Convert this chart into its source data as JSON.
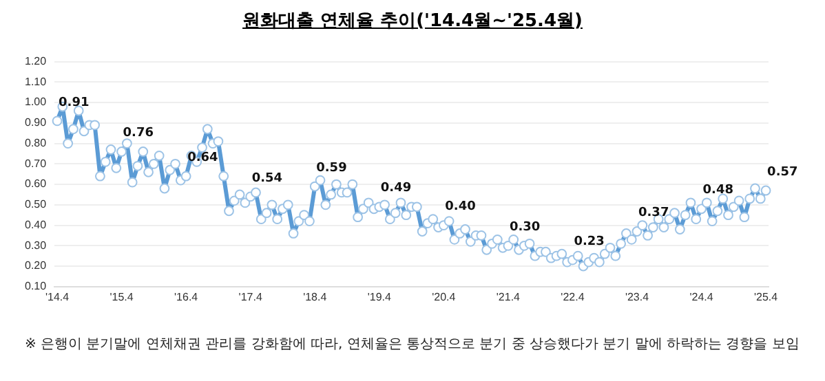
{
  "chart_data": {
    "type": "line",
    "title": "원화대출 연체율 추이('14.4월~'25.4월)",
    "categories": [
      "'14.4",
      null,
      null,
      null,
      null,
      null,
      null,
      null,
      null,
      null,
      null,
      null,
      "'15.4",
      null,
      null,
      null,
      null,
      null,
      null,
      null,
      null,
      null,
      null,
      null,
      "'16.4",
      null,
      null,
      null,
      null,
      null,
      null,
      null,
      null,
      null,
      null,
      null,
      "'17.4",
      null,
      null,
      null,
      null,
      null,
      null,
      null,
      null,
      null,
      null,
      null,
      "'18.4",
      null,
      null,
      null,
      null,
      null,
      null,
      null,
      null,
      null,
      null,
      null,
      "'19.4",
      null,
      null,
      null,
      null,
      null,
      null,
      null,
      null,
      null,
      null,
      null,
      "'20.4",
      null,
      null,
      null,
      null,
      null,
      null,
      null,
      null,
      null,
      null,
      null,
      "'21.4",
      null,
      null,
      null,
      null,
      null,
      null,
      null,
      null,
      null,
      null,
      null,
      "'22.4",
      null,
      null,
      null,
      null,
      null,
      null,
      null,
      null,
      null,
      null,
      null,
      "'23.4",
      null,
      null,
      null,
      null,
      null,
      null,
      null,
      null,
      null,
      null,
      null,
      "'24.4",
      null,
      null,
      null,
      null,
      null,
      null,
      null,
      null,
      null,
      null,
      null,
      "'25.4"
    ],
    "series": [
      {
        "color": "#5b9bd5",
        "values": [
          0.91,
          0.98,
          0.8,
          0.87,
          0.96,
          0.86,
          0.89,
          0.89,
          0.64,
          0.71,
          0.77,
          0.68,
          0.76,
          0.8,
          0.61,
          0.69,
          0.76,
          0.66,
          0.7,
          0.74,
          0.58,
          0.67,
          0.7,
          0.62,
          0.64,
          0.74,
          0.71,
          0.78,
          0.87,
          0.8,
          0.81,
          0.64,
          0.47,
          0.52,
          0.55,
          0.51,
          0.54,
          0.56,
          0.43,
          0.46,
          0.5,
          0.43,
          0.48,
          0.5,
          0.36,
          0.42,
          0.45,
          0.42,
          0.59,
          0.62,
          0.5,
          0.55,
          0.6,
          0.56,
          0.56,
          0.6,
          0.44,
          0.48,
          0.51,
          0.48,
          0.49,
          0.5,
          0.43,
          0.46,
          0.51,
          0.45,
          0.49,
          0.49,
          0.37,
          0.41,
          0.43,
          0.39,
          0.4,
          0.42,
          0.33,
          0.36,
          0.38,
          0.32,
          0.35,
          0.35,
          0.28,
          0.31,
          0.33,
          0.29,
          0.3,
          0.33,
          0.28,
          0.3,
          0.31,
          0.25,
          0.27,
          0.27,
          0.24,
          0.25,
          0.26,
          0.22,
          0.23,
          0.25,
          0.2,
          0.22,
          0.24,
          0.22,
          0.26,
          0.29,
          0.25,
          0.31,
          0.36,
          0.33,
          0.37,
          0.4,
          0.35,
          0.39,
          0.43,
          0.39,
          0.43,
          0.46,
          0.38,
          0.45,
          0.51,
          0.43,
          0.48,
          0.51,
          0.42,
          0.47,
          0.53,
          0.45,
          0.49,
          0.52,
          0.44,
          0.53,
          0.58,
          0.53,
          0.57
        ]
      }
    ],
    "ylim": [
      0.1,
      1.2
    ],
    "yticks": [
      {
        "value": 0.1,
        "label": "0.10"
      },
      {
        "value": 0.2,
        "label": "0.20"
      },
      {
        "value": 0.3,
        "label": "0.30"
      },
      {
        "value": 0.4,
        "label": "0.40"
      },
      {
        "value": 0.5,
        "label": "0.50"
      },
      {
        "value": 0.6,
        "label": "0.60"
      },
      {
        "value": 0.7,
        "label": "0.70"
      },
      {
        "value": 0.8,
        "label": "0.80"
      },
      {
        "value": 0.9,
        "label": "0.90"
      },
      {
        "value": 1.0,
        "label": "1.00"
      },
      {
        "value": 1.1,
        "label": "1.10"
      },
      {
        "value": 1.2,
        "label": "1.20"
      }
    ],
    "grid": "y",
    "legend": false,
    "marker": "circle",
    "line_style": "solid",
    "annotations": [
      {
        "text": "0.91",
        "x": "'14.4",
        "y": 0.91
      },
      {
        "text": "0.76",
        "x": "'15.4",
        "y": 0.76
      },
      {
        "text": "0.64",
        "x": "'16.4",
        "y": 0.64
      },
      {
        "text": "0.54",
        "x": "'17.4",
        "y": 0.54
      },
      {
        "text": "0.59",
        "x": "'18.4",
        "y": 0.59
      },
      {
        "text": "0.49",
        "x": "'19.4",
        "y": 0.49
      },
      {
        "text": "0.40",
        "x": "'20.4",
        "y": 0.4
      },
      {
        "text": "0.30",
        "x": "'21.4",
        "y": 0.3
      },
      {
        "text": "0.23",
        "x": "'22.4",
        "y": 0.23
      },
      {
        "text": "0.37",
        "x": "'23.4",
        "y": 0.37
      },
      {
        "text": "0.48",
        "x": "'24.4",
        "y": 0.48
      },
      {
        "text": "0.57",
        "x": "'25.4",
        "y": 0.57
      },
      "※ 은행이 분기말에 연체채권 관리를 강화함에 따라, 연체율은 통상적으로 분기 중 상승했다가 분기 말에 하락하는 경향을 보임"
    ]
  }
}
